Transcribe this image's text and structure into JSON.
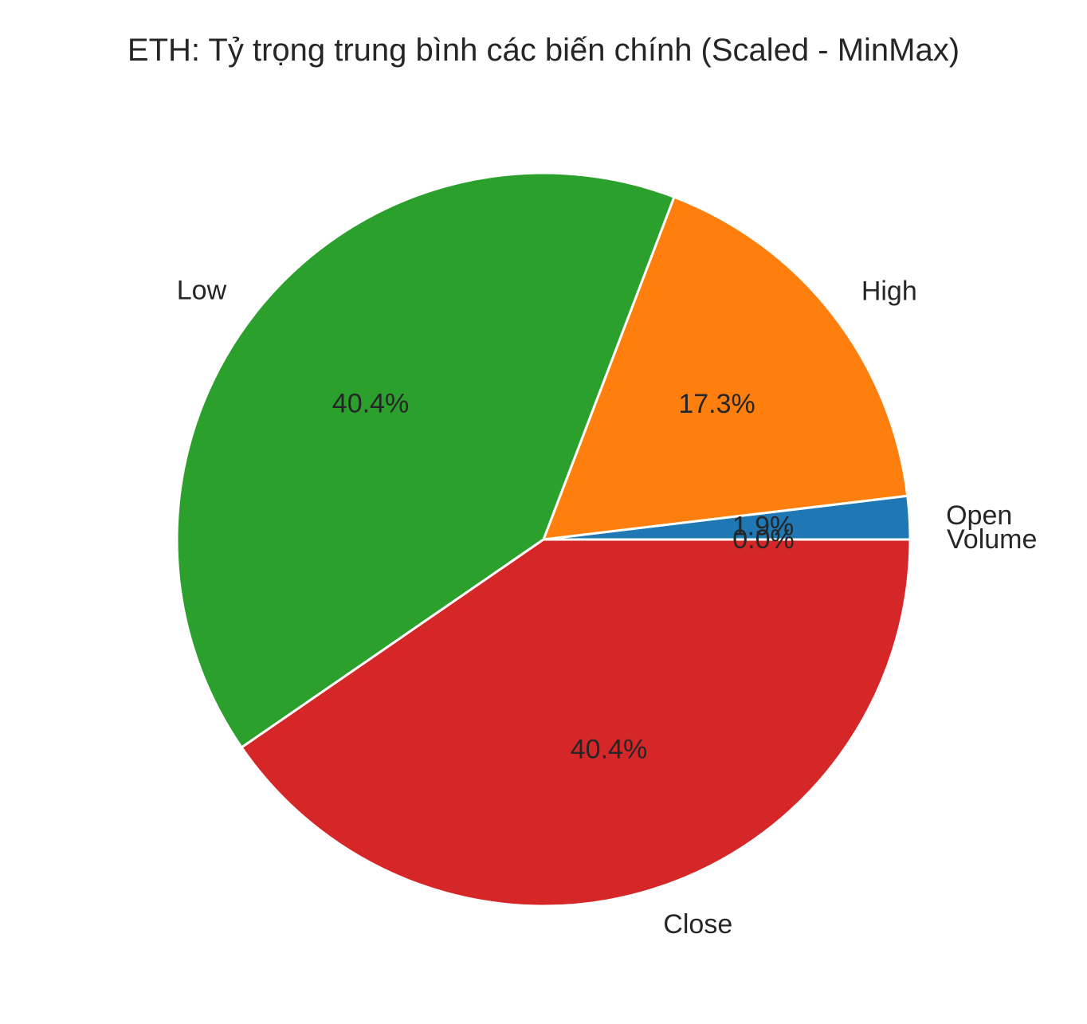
{
  "chart_data": {
    "type": "pie",
    "title": "ETH: Tỷ trọng trung bình các biến chính (Scaled - MinMax)",
    "categories": [
      "Open",
      "High",
      "Low",
      "Close",
      "Volume"
    ],
    "values": [
      1.9,
      17.3,
      40.4,
      40.4,
      0.0
    ],
    "value_labels": [
      "1.9%",
      "17.3%",
      "40.4%",
      "40.4%",
      "0.0%"
    ],
    "colors": [
      "#1f77b4",
      "#ff7f0e",
      "#2ca02c",
      "#d62728",
      "#9467bd"
    ],
    "start_angle_deg": 0,
    "direction": "counterclockwise",
    "legend": "none"
  }
}
